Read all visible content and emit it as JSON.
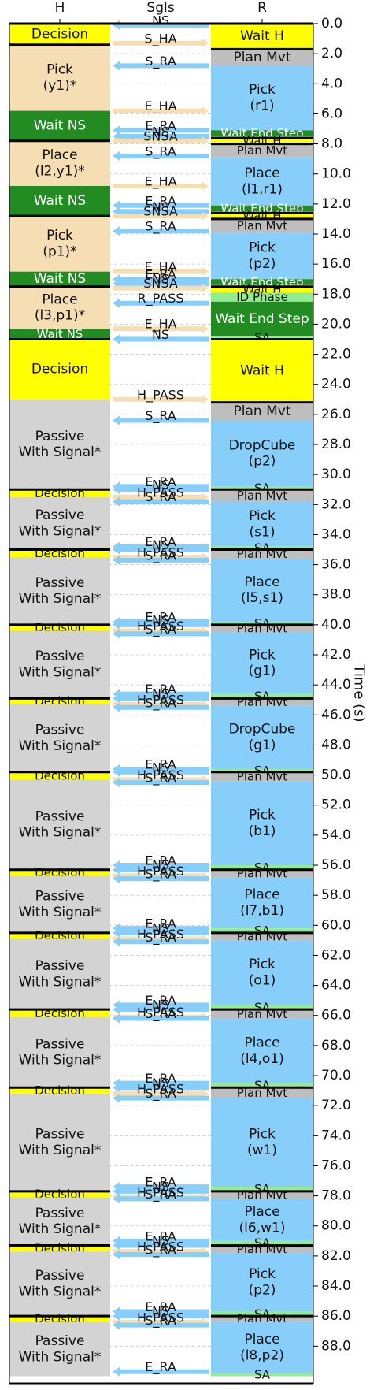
{
  "chart_data": {
    "type": "timeline",
    "columns": [
      "H",
      "Sgls",
      "R"
    ],
    "ylabel": "Time (s)",
    "ylim": [
      0.0,
      90.5
    ],
    "y_ticks": [
      0.0,
      2.0,
      4.0,
      6.0,
      8.0,
      10.0,
      12.0,
      14.0,
      16.0,
      18.0,
      20.0,
      22.0,
      24.0,
      26.0,
      28.0,
      30.0,
      32.0,
      34.0,
      36.0,
      38.0,
      40.0,
      42.0,
      44.0,
      46.0,
      48.0,
      50.0,
      52.0,
      54.0,
      56.0,
      58.0,
      60.0,
      62.0,
      64.0,
      66.0,
      68.0,
      70.0,
      72.0,
      74.0,
      76.0,
      78.0,
      80.0,
      82.0,
      84.0,
      86.0,
      88.0
    ],
    "colors": {
      "decision": "#ffff00",
      "pick_place_h": "#f5deb3",
      "wait_ns": "#228b22",
      "passive": "#d3d3d3",
      "robot_task": "#87cefa",
      "plan_mvt": "#bebebe",
      "wait_end_step": "#228b22",
      "id_phase": "#90ee90",
      "sa": "#90ee90",
      "arrow_h_to_r": "#f5deb3",
      "arrow_r_to_h": "#87cefa"
    },
    "H": [
      {
        "label": "Decision",
        "start": 0.0,
        "end": 1.4,
        "kind": "decision"
      },
      {
        "label": "Pick\n(y1)*",
        "start": 1.4,
        "end": 5.8,
        "kind": "pick_place_h"
      },
      {
        "label": "Wait NS",
        "start": 5.8,
        "end": 7.8,
        "kind": "wait_ns"
      },
      {
        "label": "Place\n(l2,y1)*",
        "start": 7.8,
        "end": 10.8,
        "kind": "pick_place_h"
      },
      {
        "label": "Wait NS",
        "start": 10.8,
        "end": 12.8,
        "kind": "wait_ns"
      },
      {
        "label": "Pick\n(p1)*",
        "start": 12.8,
        "end": 16.5,
        "kind": "pick_place_h"
      },
      {
        "label": "Wait NS",
        "start": 16.5,
        "end": 17.5,
        "kind": "wait_ns"
      },
      {
        "label": "Place\n(l3,p1)*",
        "start": 17.5,
        "end": 20.3,
        "kind": "pick_place_h"
      },
      {
        "label": "Wait NS",
        "start": 20.3,
        "end": 21.0,
        "kind": "wait_ns"
      },
      {
        "label": "Decision",
        "start": 21.0,
        "end": 25.0,
        "kind": "decision"
      },
      {
        "label": "Passive\nWith Signal*",
        "start": 25.0,
        "end": 31.0,
        "kind": "passive"
      },
      {
        "label": "Decision",
        "start": 31.0,
        "end": 31.5,
        "kind": "decision"
      },
      {
        "label": "Passive\nWith Signal*",
        "start": 31.5,
        "end": 35.0,
        "kind": "passive"
      },
      {
        "label": "Decision",
        "start": 35.0,
        "end": 35.5,
        "kind": "decision"
      },
      {
        "label": "Passive\nWith Signal*",
        "start": 35.5,
        "end": 40.0,
        "kind": "passive"
      },
      {
        "label": "Decision",
        "start": 40.0,
        "end": 40.4,
        "kind": "decision"
      },
      {
        "label": "Passive\nWith Signal*",
        "start": 40.4,
        "end": 44.9,
        "kind": "passive"
      },
      {
        "label": "Decision",
        "start": 44.9,
        "end": 45.3,
        "kind": "decision"
      },
      {
        "label": "Passive\nWith Signal*",
        "start": 45.3,
        "end": 49.8,
        "kind": "passive"
      },
      {
        "label": "Decision",
        "start": 49.8,
        "end": 50.3,
        "kind": "decision"
      },
      {
        "label": "Passive\nWith Signal*",
        "start": 50.3,
        "end": 56.3,
        "kind": "passive"
      },
      {
        "label": "Decision",
        "start": 56.3,
        "end": 56.7,
        "kind": "decision"
      },
      {
        "label": "Passive\nWith Signal*",
        "start": 56.7,
        "end": 60.5,
        "kind": "passive"
      },
      {
        "label": "Decision",
        "start": 60.5,
        "end": 60.9,
        "kind": "decision"
      },
      {
        "label": "Passive\nWith Signal*",
        "start": 60.9,
        "end": 65.6,
        "kind": "passive"
      },
      {
        "label": "Decision",
        "start": 65.6,
        "end": 66.1,
        "kind": "decision"
      },
      {
        "label": "Passive\nWith Signal*",
        "start": 66.1,
        "end": 70.8,
        "kind": "passive"
      },
      {
        "label": "Decision",
        "start": 70.8,
        "end": 71.2,
        "kind": "decision"
      },
      {
        "label": "Passive\nWith Signal*",
        "start": 71.2,
        "end": 77.7,
        "kind": "passive"
      },
      {
        "label": "Decision",
        "start": 77.7,
        "end": 78.1,
        "kind": "decision"
      },
      {
        "label": "Passive\nWith Signal*",
        "start": 78.1,
        "end": 81.3,
        "kind": "passive"
      },
      {
        "label": "Decision",
        "start": 81.3,
        "end": 81.7,
        "kind": "decision"
      },
      {
        "label": "Passive\nWith Signal*",
        "start": 81.7,
        "end": 86.0,
        "kind": "passive"
      },
      {
        "label": "Decision",
        "start": 86.0,
        "end": 86.4,
        "kind": "decision"
      },
      {
        "label": "Passive\nWith Signal*",
        "start": 86.4,
        "end": 90.0,
        "kind": "passive"
      }
    ],
    "R": [
      {
        "label": "Wait H",
        "start": 0.0,
        "end": 1.7,
        "kind": "decision"
      },
      {
        "label": "Plan Mvt",
        "start": 1.7,
        "end": 2.8,
        "kind": "plan_mvt"
      },
      {
        "label": "Pick\n(r1)",
        "start": 2.8,
        "end": 7.1,
        "kind": "robot_task"
      },
      {
        "label": "Wait End Step",
        "start": 7.1,
        "end": 7.5,
        "kind": "wait_end_step"
      },
      {
        "label": "Wait H",
        "start": 7.6,
        "end": 8.0,
        "kind": "decision"
      },
      {
        "label": "Plan Mvt",
        "start": 8.0,
        "end": 8.9,
        "kind": "plan_mvt"
      },
      {
        "label": "Place\n(l1,r1)",
        "start": 8.9,
        "end": 12.1,
        "kind": "robot_task"
      },
      {
        "label": "Wait End Step",
        "start": 12.1,
        "end": 12.5,
        "kind": "wait_end_step"
      },
      {
        "label": "Wait H",
        "start": 12.6,
        "end": 13.0,
        "kind": "decision"
      },
      {
        "label": "Plan Mvt",
        "start": 13.0,
        "end": 13.9,
        "kind": "plan_mvt"
      },
      {
        "label": "Pick\n(p2)",
        "start": 13.9,
        "end": 17.0,
        "kind": "robot_task"
      },
      {
        "label": "Wait End Step",
        "start": 17.0,
        "end": 17.4,
        "kind": "wait_end_step"
      },
      {
        "label": "Wait H",
        "start": 17.5,
        "end": 17.9,
        "kind": "decision"
      },
      {
        "label": "ID Phase",
        "start": 17.9,
        "end": 18.5,
        "kind": "id_phase"
      },
      {
        "label": "Wait End Step",
        "start": 18.5,
        "end": 20.8,
        "kind": "wait_end_step"
      },
      {
        "label": "SA",
        "start": 20.8,
        "end": 21.0,
        "kind": "sa"
      },
      {
        "label": "Wait H",
        "start": 21.0,
        "end": 25.2,
        "kind": "decision"
      },
      {
        "label": "Plan Mvt",
        "start": 25.2,
        "end": 26.4,
        "kind": "plan_mvt"
      },
      {
        "label": "DropCube\n(p2)",
        "start": 26.4,
        "end": 30.8,
        "kind": "robot_task"
      },
      {
        "label": "SA",
        "start": 30.8,
        "end": 31.0,
        "kind": "sa"
      },
      {
        "label": "Plan Mvt",
        "start": 31.0,
        "end": 31.8,
        "kind": "plan_mvt"
      },
      {
        "label": "Pick\n(s1)",
        "start": 31.8,
        "end": 34.8,
        "kind": "robot_task"
      },
      {
        "label": "SA",
        "start": 34.8,
        "end": 35.0,
        "kind": "sa"
      },
      {
        "label": "Plan Mvt",
        "start": 35.0,
        "end": 35.6,
        "kind": "plan_mvt"
      },
      {
        "label": "Place\n(l5,s1)",
        "start": 35.6,
        "end": 39.8,
        "kind": "robot_task"
      },
      {
        "label": "SA",
        "start": 39.8,
        "end": 40.0,
        "kind": "sa"
      },
      {
        "label": "Plan Mvt",
        "start": 40.0,
        "end": 40.5,
        "kind": "plan_mvt"
      },
      {
        "label": "Pick\n(g1)",
        "start": 40.5,
        "end": 44.6,
        "kind": "robot_task"
      },
      {
        "label": "SA",
        "start": 44.6,
        "end": 44.9,
        "kind": "sa"
      },
      {
        "label": "Plan Mvt",
        "start": 44.9,
        "end": 45.4,
        "kind": "plan_mvt"
      },
      {
        "label": "DropCube\n(g1)",
        "start": 45.4,
        "end": 49.6,
        "kind": "robot_task"
      },
      {
        "label": "SA",
        "start": 49.6,
        "end": 49.8,
        "kind": "sa"
      },
      {
        "label": "Plan Mvt",
        "start": 49.8,
        "end": 50.4,
        "kind": "plan_mvt"
      },
      {
        "label": "Pick\n(b1)",
        "start": 50.4,
        "end": 56.0,
        "kind": "robot_task"
      },
      {
        "label": "SA",
        "start": 56.0,
        "end": 56.3,
        "kind": "sa"
      },
      {
        "label": "Plan Mvt",
        "start": 56.3,
        "end": 56.8,
        "kind": "plan_mvt"
      },
      {
        "label": "Place\n(l7,b1)",
        "start": 56.8,
        "end": 60.2,
        "kind": "robot_task"
      },
      {
        "label": "SA",
        "start": 60.2,
        "end": 60.5,
        "kind": "sa"
      },
      {
        "label": "Plan Mvt",
        "start": 60.5,
        "end": 61.0,
        "kind": "plan_mvt"
      },
      {
        "label": "Pick\n(o1)",
        "start": 61.0,
        "end": 65.3,
        "kind": "robot_task"
      },
      {
        "label": "SA",
        "start": 65.3,
        "end": 65.6,
        "kind": "sa"
      },
      {
        "label": "Plan Mvt",
        "start": 65.6,
        "end": 66.2,
        "kind": "plan_mvt"
      },
      {
        "label": "Place\n(l4,o1)",
        "start": 66.2,
        "end": 70.5,
        "kind": "robot_task"
      },
      {
        "label": "SA",
        "start": 70.5,
        "end": 70.8,
        "kind": "sa"
      },
      {
        "label": "Plan Mvt",
        "start": 70.8,
        "end": 71.5,
        "kind": "plan_mvt"
      },
      {
        "label": "Pick\n(w1)",
        "start": 71.5,
        "end": 77.4,
        "kind": "robot_task"
      },
      {
        "label": "SA",
        "start": 77.4,
        "end": 77.7,
        "kind": "sa"
      },
      {
        "label": "Plan Mvt",
        "start": 77.7,
        "end": 78.2,
        "kind": "plan_mvt"
      },
      {
        "label": "Place\n(l6,w1)",
        "start": 78.2,
        "end": 81.0,
        "kind": "robot_task"
      },
      {
        "label": "SA",
        "start": 81.0,
        "end": 81.3,
        "kind": "sa"
      },
      {
        "label": "Plan Mvt",
        "start": 81.3,
        "end": 81.8,
        "kind": "plan_mvt"
      },
      {
        "label": "Pick\n(p2)",
        "start": 81.8,
        "end": 85.7,
        "kind": "robot_task"
      },
      {
        "label": "SA",
        "start": 85.7,
        "end": 86.0,
        "kind": "sa"
      },
      {
        "label": "Plan Mvt",
        "start": 86.0,
        "end": 86.4,
        "kind": "plan_mvt"
      },
      {
        "label": "Place\n(l8,p2)",
        "start": 86.4,
        "end": 89.8,
        "kind": "robot_task"
      },
      {
        "label": "SA",
        "start": 89.8,
        "end": 90.0,
        "kind": "sa"
      }
    ],
    "signals": [
      {
        "label": "NS",
        "t": 0.1,
        "dir": "R_to_H"
      },
      {
        "label": "S_HA",
        "t": 1.3,
        "dir": "H_to_R"
      },
      {
        "label": "S_RA",
        "t": 2.8,
        "dir": "R_to_H"
      },
      {
        "label": "E_HA",
        "t": 5.8,
        "dir": "H_to_R"
      },
      {
        "label": "E_RA",
        "t": 7.1,
        "dir": "R_to_H"
      },
      {
        "label": "NS",
        "t": 7.5,
        "dir": "R_to_H"
      },
      {
        "label": "SNSA",
        "t": 7.8,
        "dir": "H_to_R"
      },
      {
        "label": "S_RA",
        "t": 8.8,
        "dir": "R_to_H"
      },
      {
        "label": "E_HA",
        "t": 10.8,
        "dir": "H_to_R"
      },
      {
        "label": "E_RA",
        "t": 12.1,
        "dir": "R_to_H"
      },
      {
        "label": "NS",
        "t": 12.5,
        "dir": "R_to_H"
      },
      {
        "label": "SNSA",
        "t": 12.8,
        "dir": "H_to_R"
      },
      {
        "label": "S_RA",
        "t": 13.8,
        "dir": "R_to_H"
      },
      {
        "label": "E_HA",
        "t": 16.5,
        "dir": "H_to_R"
      },
      {
        "label": "E_RA",
        "t": 17.0,
        "dir": "R_to_H"
      },
      {
        "label": "NS",
        "t": 17.3,
        "dir": "R_to_H"
      },
      {
        "label": "SNSA",
        "t": 17.6,
        "dir": "H_to_R"
      },
      {
        "label": "R_PASS",
        "t": 18.6,
        "dir": "R_to_H"
      },
      {
        "label": "E_HA",
        "t": 20.3,
        "dir": "H_to_R"
      },
      {
        "label": "NS",
        "t": 21.0,
        "dir": "R_to_H"
      },
      {
        "label": "H_PASS",
        "t": 25.0,
        "dir": "H_to_R"
      },
      {
        "label": "S_RA",
        "t": 26.4,
        "dir": "R_to_H"
      },
      {
        "label": "E_RA",
        "t": 30.8,
        "dir": "R_to_H"
      },
      {
        "label": "NS",
        "t": 31.0,
        "dir": "R_to_H"
      },
      {
        "label": "H_PASS",
        "t": 31.5,
        "dir": "H_to_R"
      },
      {
        "label": "S_RA",
        "t": 31.8,
        "dir": "R_to_H"
      },
      {
        "label": "E_RA",
        "t": 34.8,
        "dir": "R_to_H"
      },
      {
        "label": "NS",
        "t": 35.0,
        "dir": "R_to_H"
      },
      {
        "label": "H_PASS",
        "t": 35.5,
        "dir": "H_to_R"
      },
      {
        "label": "S_RA",
        "t": 35.7,
        "dir": "R_to_H"
      },
      {
        "label": "E_RA",
        "t": 39.8,
        "dir": "R_to_H"
      },
      {
        "label": "NS",
        "t": 40.0,
        "dir": "R_to_H"
      },
      {
        "label": "H_PASS",
        "t": 40.4,
        "dir": "H_to_R"
      },
      {
        "label": "S_RA",
        "t": 40.6,
        "dir": "R_to_H"
      },
      {
        "label": "E_RA",
        "t": 44.6,
        "dir": "R_to_H"
      },
      {
        "label": "NS",
        "t": 44.9,
        "dir": "R_to_H"
      },
      {
        "label": "H_PASS",
        "t": 45.3,
        "dir": "H_to_R"
      },
      {
        "label": "S_RA",
        "t": 45.5,
        "dir": "R_to_H"
      },
      {
        "label": "E_RA",
        "t": 49.6,
        "dir": "R_to_H"
      },
      {
        "label": "NS",
        "t": 49.8,
        "dir": "R_to_H"
      },
      {
        "label": "H_PASS",
        "t": 50.3,
        "dir": "H_to_R"
      },
      {
        "label": "S_RA",
        "t": 50.5,
        "dir": "R_to_H"
      },
      {
        "label": "E_RA",
        "t": 56.0,
        "dir": "R_to_H"
      },
      {
        "label": "NS",
        "t": 56.3,
        "dir": "R_to_H"
      },
      {
        "label": "H_PASS",
        "t": 56.7,
        "dir": "H_to_R"
      },
      {
        "label": "S_RA",
        "t": 56.9,
        "dir": "R_to_H"
      },
      {
        "label": "E_RA",
        "t": 60.2,
        "dir": "R_to_H"
      },
      {
        "label": "NS",
        "t": 60.5,
        "dir": "R_to_H"
      },
      {
        "label": "H_PASS",
        "t": 60.9,
        "dir": "H_to_R"
      },
      {
        "label": "S_RA",
        "t": 61.1,
        "dir": "R_to_H"
      },
      {
        "label": "E_RA",
        "t": 65.3,
        "dir": "R_to_H"
      },
      {
        "label": "NS",
        "t": 65.6,
        "dir": "R_to_H"
      },
      {
        "label": "H_PASS",
        "t": 66.1,
        "dir": "H_to_R"
      },
      {
        "label": "S_RA",
        "t": 66.2,
        "dir": "R_to_H"
      },
      {
        "label": "E_RA",
        "t": 70.5,
        "dir": "R_to_H"
      },
      {
        "label": "NS",
        "t": 70.8,
        "dir": "R_to_H"
      },
      {
        "label": "H_PASS",
        "t": 71.2,
        "dir": "H_to_R"
      },
      {
        "label": "S_RA",
        "t": 71.5,
        "dir": "R_to_H"
      },
      {
        "label": "E_RA",
        "t": 77.4,
        "dir": "R_to_H"
      },
      {
        "label": "NS",
        "t": 77.7,
        "dir": "R_to_H"
      },
      {
        "label": "H_PASS",
        "t": 78.1,
        "dir": "H_to_R"
      },
      {
        "label": "S_RA",
        "t": 78.2,
        "dir": "R_to_H"
      },
      {
        "label": "E_RA",
        "t": 81.0,
        "dir": "R_to_H"
      },
      {
        "label": "NS",
        "t": 81.3,
        "dir": "R_to_H"
      },
      {
        "label": "H_PASS",
        "t": 81.7,
        "dir": "H_to_R"
      },
      {
        "label": "S_RA",
        "t": 81.9,
        "dir": "R_to_H"
      },
      {
        "label": "E_RA",
        "t": 85.7,
        "dir": "R_to_H"
      },
      {
        "label": "NS",
        "t": 86.0,
        "dir": "R_to_H"
      },
      {
        "label": "H_PASS",
        "t": 86.4,
        "dir": "H_to_R"
      },
      {
        "label": "S_RA",
        "t": 86.6,
        "dir": "R_to_H"
      },
      {
        "label": "E_RA",
        "t": 89.7,
        "dir": "R_to_H"
      }
    ]
  }
}
